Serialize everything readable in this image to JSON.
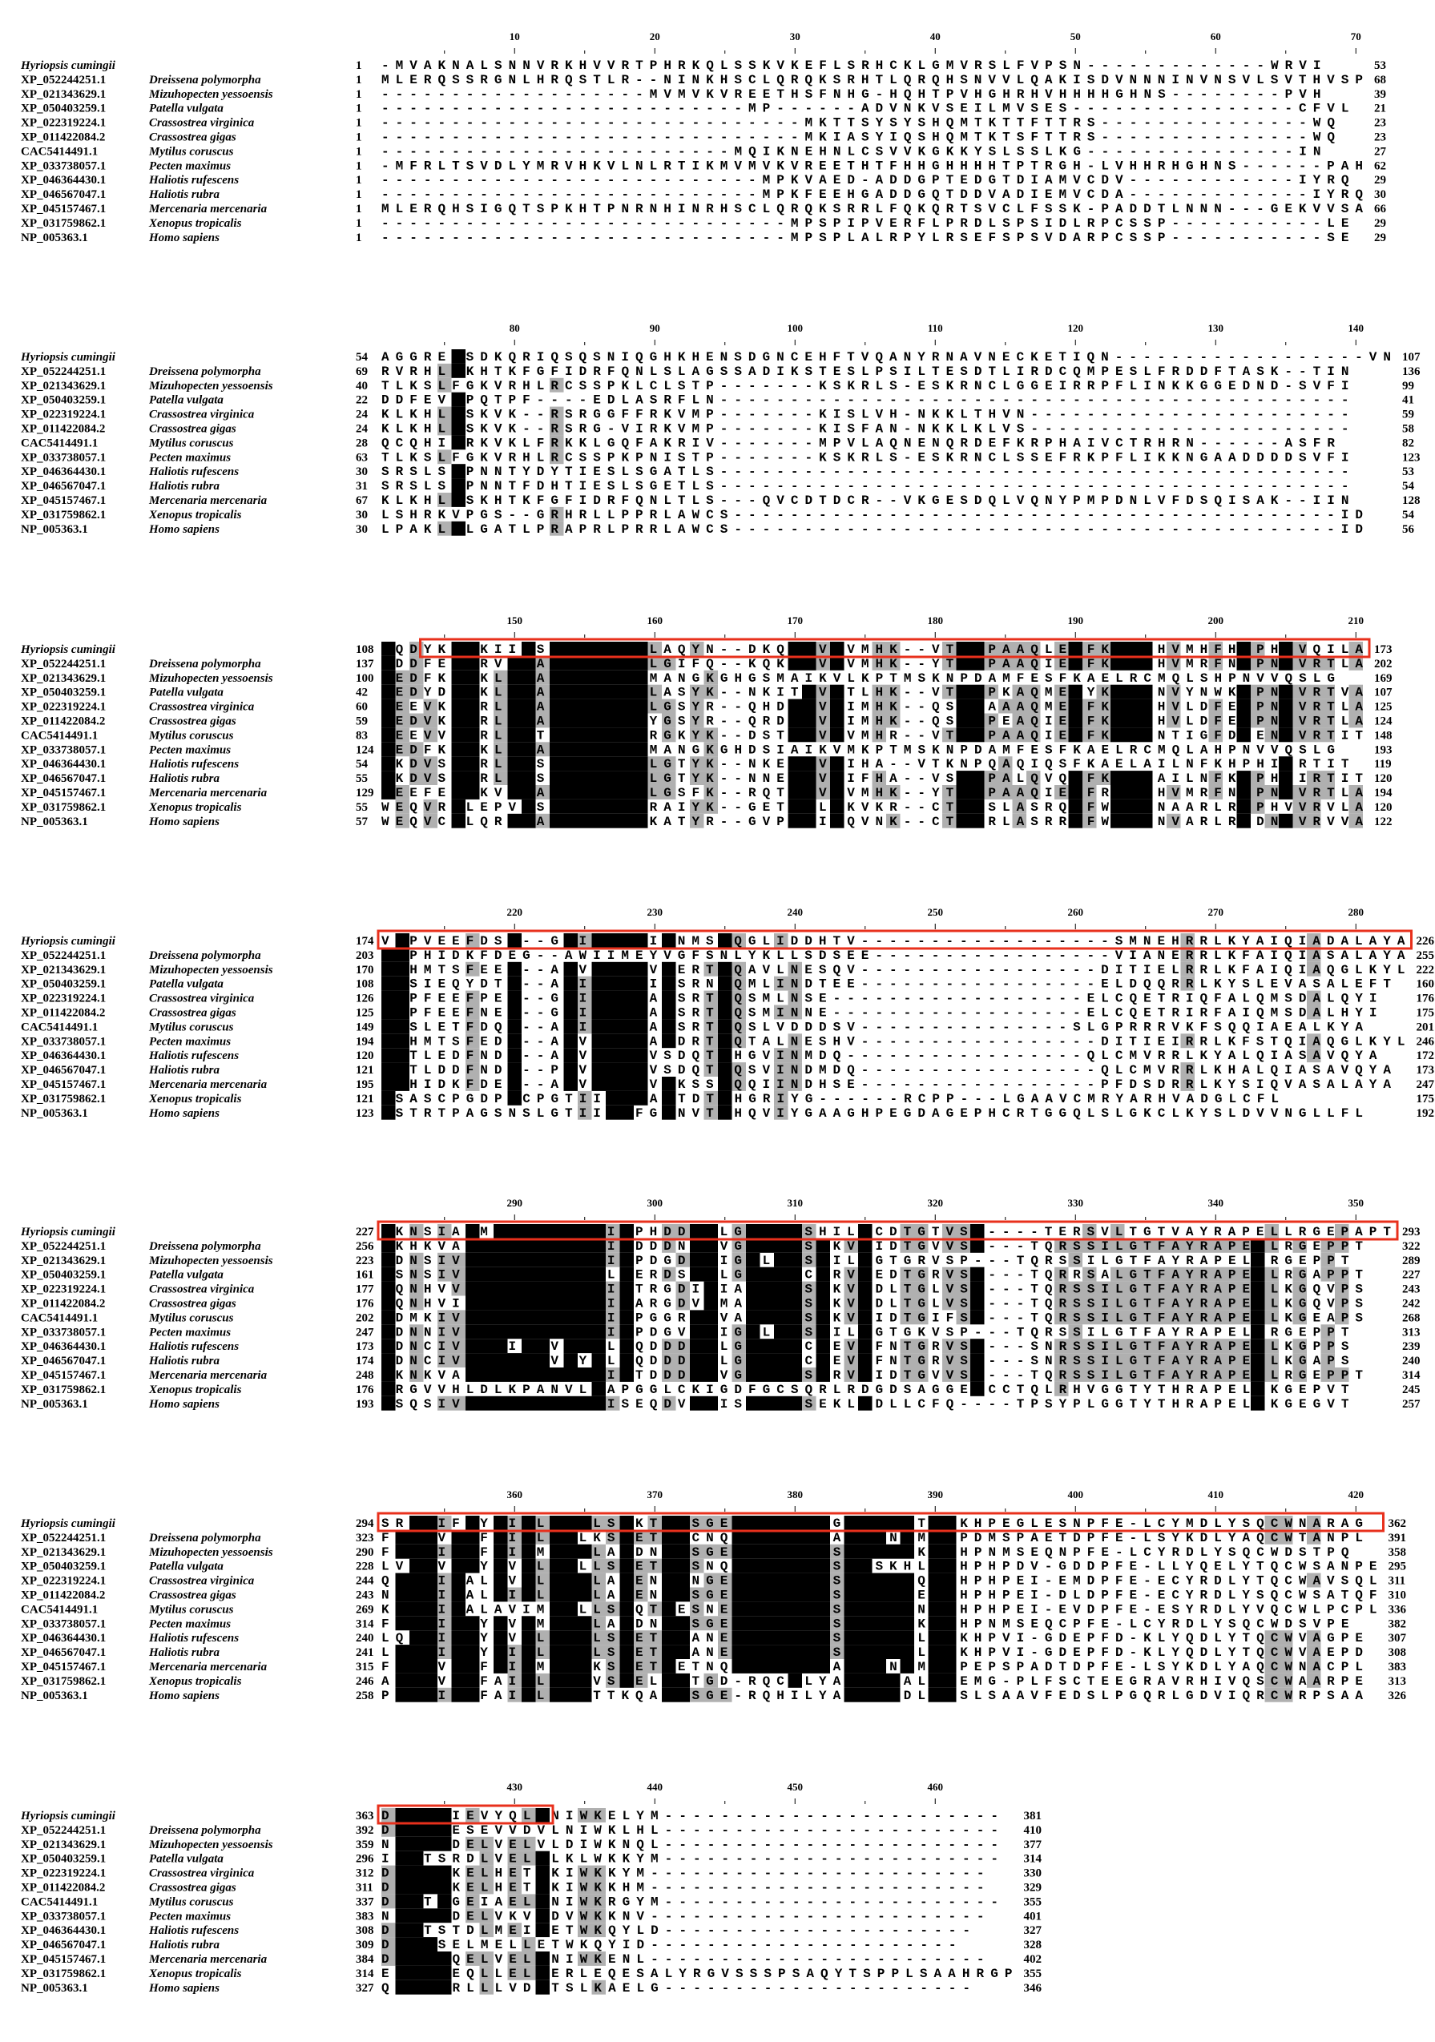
{
  "species": [
    {
      "acc": "Hyriopsis cumingii",
      "name": ""
    },
    {
      "acc": "XP_052244251.1",
      "name": "Dreissena polymorpha"
    },
    {
      "acc": "XP_021343629.1",
      "name": "Mizuhopecten yessoensis"
    },
    {
      "acc": "XP_050403259.1",
      "name": "Patella vulgata"
    },
    {
      "acc": "XP_022319224.1",
      "name": "Crassostrea virginica"
    },
    {
      "acc": "XP_011422084.2",
      "name": "Crassostrea gigas"
    },
    {
      "acc": "CAC5414491.1",
      "name": "Mytilus coruscus"
    },
    {
      "acc": "XP_033738057.1",
      "name": "Pecten maximus"
    },
    {
      "acc": "XP_046364430.1",
      "name": "Haliotis rufescens"
    },
    {
      "acc": "XP_046567047.1",
      "name": "Haliotis rubra"
    },
    {
      "acc": "XP_045157467.1",
      "name": "Mercenaria mercenaria"
    },
    {
      "acc": "XP_031759862.1",
      "name": "Xenopus tropicalis"
    },
    {
      "acc": "NP_005363.1",
      "name": "Homo sapiens"
    }
  ],
  "blocks": [
    {
      "ruler": [
        "10",
        "20",
        "30",
        "40",
        "50",
        "60",
        "70"
      ],
      "rows": [
        {
          "start": 1,
          "seq": "-MVAKNALSNNVRKHVVRTPHRKQLSSKVKEFLSRHCKLGMVRSLFVPSN-------------WRVI",
          "end": 53
        },
        {
          "start": 1,
          "seq": "MLERQSSRGNLHRQSTLR--NINKHSCLQRQKSRHTLQRQHSNVVLQAKISDVNNNINVNSVLSVTHVSP",
          "end": 68
        },
        {
          "start": 1,
          "seq": "-------------------MVMVKVREETHSFNHG-HQHTPVHGHRHVHHHHGHNS--------PVH",
          "end": 39
        },
        {
          "start": 1,
          "seq": "--------------------------MP------ADVNKVSEILMVSES----------------CFVL",
          "end": 21
        },
        {
          "start": 1,
          "seq": "------------------------------MKTTSYSYSHQMTKTTFTTRS---------------WQ",
          "end": 23
        },
        {
          "start": 1,
          "seq": "------------------------------MKIASYIQSHQMTKTSFTTRS---------------WQ",
          "end": 23
        },
        {
          "start": 1,
          "seq": "-------------------------MQIKNEHNLCSVVKGKKYSLSSLKG---------------IN",
          "end": 27
        },
        {
          "start": 1,
          "seq": "-MFRLTSVDLYMRVHKVLNLRTIKMVMVKVREETHTFHHGHHHHTPTRGH-LVHHRHGHNS------PAH",
          "end": 62
        },
        {
          "start": 1,
          "seq": "---------------------------MPKVAED-ADDGPTEDGTDIAMVCDV------------IYRQ",
          "end": 29
        },
        {
          "start": 1,
          "seq": "---------------------------MPKFEEHGADDGQTDDVADIEMVCDA-------------IYRQ",
          "end": 30
        },
        {
          "start": 1,
          "seq": "MLERQHSIGQTSPKHTPNRNHINRHSCLQRQKSRRLFQKQRTSVCLFSSK-PADDTLNNN---GEKVVSA",
          "end": 66
        },
        {
          "start": 1,
          "seq": "-----------------------------MPSPIPVERFLPRDLSPSIDLRPCSSP-----------LE",
          "end": 29
        },
        {
          "start": 1,
          "seq": "-----------------------------MPSPLALRPYLRSEFSPSVDARPCSSP-----------SE",
          "end": 29
        }
      ]
    },
    {
      "ruler": [
        "80",
        "90",
        "100",
        "110",
        "120",
        "130",
        "140"
      ],
      "rows": [
        {
          "start": 54,
          "seq": "AGGRELSDKQRIQSQSNIQGHKHENSDGNCEHFTVQANYRNAVNECKETIQN------------------VN",
          "end": 107
        },
        {
          "start": 69,
          "seq": "RVRHLLKHTKFGFIDRFQNLSLAGSSADIKSTESLPSILTESDTLIRDCQMPESLFRDDFTASK--TIN",
          "end": 136
        },
        {
          "start": 40,
          "seq": "TLKSLFGKVRHLRCSSPKLCLSTP-------KSKRLS-ESKRNCLGGEIRRPFLINKKGGEDND-SVFI",
          "end": 99
        },
        {
          "start": 22,
          "seq": "DDFEVLPQTPF----EDLASRFLN---------------------------------------------",
          "end": 41
        },
        {
          "start": 24,
          "seq": "KLKHLLSKVK--RSRGGFFRKVMP-------KISLVH-NKKLTHVN-----------------------",
          "end": 59
        },
        {
          "start": 24,
          "seq": "KLKHLLSKVK--RSRG-VIRKVMP-------KISFAN-NKKLKLVS-----------------------",
          "end": 58
        },
        {
          "start": 28,
          "seq": "QCQHILRKVKLFRKKLGQFAKRIV-------MPVLAQNENQRDEFKRPHAIVCTRHRN------ASFR",
          "end": 82
        },
        {
          "start": 63,
          "seq": "TLKSLFGKVRHLRCSSPKPNISTP-------KSKRLS-ESKRNCLSSEFRKPFLIKKNGAADDDDSVFI",
          "end": 123
        },
        {
          "start": 30,
          "seq": "SRSLSLPNNTYDYTIESLSGATLS---------------------------------------------",
          "end": 53
        },
        {
          "start": 31,
          "seq": "SRSLSLPNNTFDHTIESLSGETLS---------------------------------------------",
          "end": 54
        },
        {
          "start": 67,
          "seq": "KLKHLLSKHTKFGFIDRFQNLTLS---QVCDTDCR--VKGESDQLVQNYPMPDNLVFDSQISAK--IIN",
          "end": 128
        },
        {
          "start": 30,
          "seq": "LSHRKVPGS--GRHRLLPPRLAWCS-------------------------------------------ID",
          "end": 54
        },
        {
          "start": 30,
          "seq": "LPAKLLLGATLPRAPRLPRRLAWCS-------------------------------------------ID",
          "end": 56
        }
      ]
    },
    {
      "ruler": [
        "150",
        "160",
        "170",
        "180",
        "190",
        "200",
        "210"
      ],
      "rows": [
        {
          "start": 108,
          "seq": "KQDYKLGKIIGSGGFGSVYLAQYN--DKQVAVKVMHK--VTKNPAAQLESFKAELHVMHFHHPHIVQILA",
          "end": 173
        },
        {
          "start": 137,
          "seq": "KDDFELGRVLGAGGFGSVYLGIFQ--KQKVAVKVMHK--YTKNPAAQIESFKAELHVMRFNHPNIVRTLA",
          "end": 202
        },
        {
          "start": 100,
          "seq": "KEDFKLGKLLGAGGFGSVYMANGKGHGSMAIKVLKPTMSKNPDAMFESFKAELRCMQLSHPNVVQSLG",
          "end": 169
        },
        {
          "start": 42,
          "seq": "KEDYDLGKLLGAGGFGSVYLASYK--NKITAVKTLHK--VTKNPKAQMESYKAELNVYNWKHPNIVRTVA",
          "end": 107
        },
        {
          "start": 60,
          "seq": "KEEVKLGRLLGAGGFGSVYLGSYR--QHDVAVKIMHK--QSKNAAAQMESFKAELHVLDFEHPNIVRTLA",
          "end": 125
        },
        {
          "start": 59,
          "seq": "KEDVKLGRLLGAGGFGSVYYGSYR--QRDVAVKIMHK--QSKNPEAQIESFKAELHVLDFEHPNIVRTLA",
          "end": 124
        },
        {
          "start": 83,
          "seq": "KEEVVLGRLLGTGGFGSVYRGKYK--DSTVAVKVMHR--VTKNPAAQIESFKAELNTIGFDHENIVRTIT",
          "end": 148
        },
        {
          "start": 124,
          "seq": "KEDFKLGKLLGAGGFGSVYMANGKGHDSIAIKVMKPTMSKNPDAMFESFKAELRCMQLAHPNVVQSLG",
          "end": 193
        },
        {
          "start": 54,
          "seq": "KKDVSLGRLLGSGGFGSVYLGTYK--NKEVAVKIHA--VTKNPQAQIQSFKAELAILNFKHPHIIRTIT",
          "end": 119
        },
        {
          "start": 55,
          "seq": "KKDVSLGRLLGSGGFGSVYLGTYK--NNEVAVKIFHA--VSKNPALQVQSFKAELAILNFKHPHIIRTIT",
          "end": 120
        },
        {
          "start": 129,
          "seq": "KEEFELGKVLGAGGFGSVYLGSFK--RQTVAVKVMHK--YTKNPAAQIESFRAELHVMRFNHPNIVRTLA",
          "end": 194
        },
        {
          "start": 55,
          "seq": "WEQVRLLEPVGSGGFGSVYRAIYK--GETVALKKVKR--CTKNSLASRQSFWAELNAARLRHPHVVRVLA",
          "end": 120
        },
        {
          "start": 57,
          "seq": "WEQVCLLQRLGAGGFGSVYKATYR--GVPVAIKQVNK--CTKNRLASRRSFWAELNVARLRHDNIVRVVA",
          "end": 122
        }
      ]
    },
    {
      "ruler": [
        "220",
        "230",
        "240",
        "250",
        "260",
        "270",
        "280"
      ],
      "rows": [
        {
          "start": 174,
          "seq": "VTPVEEFDSG--GWIVMEYIGNMSLQGLIDDHTV------------------SMNEHRRLKYAIQIADALAYA",
          "end": 226
        },
        {
          "start": 203,
          "seq": "ATPHIDKFDEG--AWIIMEYVGFSNLYKLLSDSEE-----------------VIANERRLKFAIQIASALAYA",
          "end": 255
        },
        {
          "start": 170,
          "seq": "ATHMTSFEEG--AWVVMEYVGERTLQAVLNESQV-----------------DITIELRRLKFAIQIAQGLKYL",
          "end": 222
        },
        {
          "start": 108,
          "seq": "ATSIEQYDTG--AWIVMEYIGSRNLQMLINDTEE-----------------ELDQQRRLKYSLEVASALEFT",
          "end": 160
        },
        {
          "start": 126,
          "seq": "ATPFEEFPEG--GWIVMEYAGSRTLQSMLNSE------------------ELCQETRIQFALQMSDALQYI",
          "end": 176
        },
        {
          "start": 125,
          "seq": "ATPFEEFNEG--GWIVMEYAGSRTLQSMINNE------------------ELCQETRIRFAIQMSDALHYI",
          "end": 175
        },
        {
          "start": 149,
          "seq": "ATSLETFDQG--AWIVMEYAGSRTLQSLVDDDSV---------------SLGPRRRVKFSQQIAEALKYA",
          "end": 201
        },
        {
          "start": 194,
          "seq": "ATHMTSFEDG--AWVVMEYAGDRTLQTALNESHV-----------------DITIEIRRLKFSTQIAQGLKYL",
          "end": 246
        },
        {
          "start": 120,
          "seq": "ATTLEDFNDG--AWVVMEYVSDQTLHGVINMDQ-----------------QLCMVRRLKYALQIASAVQYA",
          "end": 172
        },
        {
          "start": 121,
          "seq": "ATTLDDFNDG--PWVVMEYVSDQTLQSVINDMDQ-----------------QLCMVRRLKHALQIASAVQYA",
          "end": 173
        },
        {
          "start": 195,
          "seq": "ATHIDKFDEG--AWVVMEYVGKSSLQQIINDHSE-----------------PFDSDRRLKYSIQVASALAYA",
          "end": 247
        },
        {
          "start": 121,
          "seq": "ASASCPGDPGCPGTIIMEYAGTDTLHGRIYG------RCPP---LGAAVCMRYARHVADGLCFL",
          "end": 175
        },
        {
          "start": 123,
          "seq": "ASTRTPAGSNSLGTIIMEFGGNVTLHQVIYGAAGHPEGDAGEPHCRTGGQLSLGKCLKYSLDVVNGLLFL",
          "end": 192
        }
      ]
    },
    {
      "ruler": [
        "290",
        "300",
        "310",
        "320",
        "330",
        "340",
        "350"
      ],
      "rows": [
        {
          "start": 227,
          "seq": "HKNSIAHMDLKPANILITPHDDCKLGDFGCSHILECDTGTVSP----TERSVLTGTVAYRAPELLRGEPAPT",
          "end": 293
        },
        {
          "start": 256,
          "seq": "HKHKVAHLDLKPANILITDDDNCKVGDFGCSQKVEIDTGVVSP---TQRSSILGTFAYRAPELLRGEPPT",
          "end": 322
        },
        {
          "start": 223,
          "seq": "HDNSIVHLDLKPANILITPDGDCKIGDLGCSQILEGTGRVSP---TQRSSILGTFAYRAPELLRGEPPT",
          "end": 289
        },
        {
          "start": 161,
          "seq": "HSNSIVHLDLKPANILLTERDSCKLGDFGCCQRVEEDTGRVSP---TQRRSALGTFAYRAPELLRGAPPT",
          "end": 227
        },
        {
          "start": 177,
          "seq": "HQNHVVHLDLKPANILITTRGDIKIADFGCSQKVEDLTGLVSP---TQRSSILGTFAYRAPELLKGQVPS",
          "end": 243
        },
        {
          "start": 176,
          "seq": "HQNHVIHLDLKPANILITARGDVKMADFGCSQKVEDLTGLVSP---TQRSSILGTFAYRAPELLKGQVPS",
          "end": 242
        },
        {
          "start": 202,
          "seq": "HDMKIVHLDLKPANILITPGGRCKVADFGCSQKVEIDTGIFSP---TQRSSILGTFAYRAPELLKGEAPS",
          "end": 268
        },
        {
          "start": 247,
          "seq": "HDNNIVHLDLKPANILITPDGVCKIGDLGCSQILEGTGKVSP---TQRSSILGTFAYRAPELLRGEPPT",
          "end": 313
        },
        {
          "start": 173,
          "seq": "HDNCIVHLDIKPVNILLTQDDDCKLGDFGCCQEVEFNTGRVSP---SNRSSILGTFAYRAPELLKGPPS",
          "end": 239
        },
        {
          "start": 174,
          "seq": "HDNCIVHLDLKPVNYLLTQDDDCKLGDFGCCQEVEFNTGRVSP---SNRSSILGTFAYRAPELLKGAPS",
          "end": 240
        },
        {
          "start": 248,
          "seq": "HKNKVAHLDLKPANILITTDDDCKVGDFGCSQRVEIDTGVVSP---TQRSSILGTFAYRAPELLRGEPPT",
          "end": 314
        },
        {
          "start": 176,
          "seq": "HRGVVHLDLKPANVLLAPGGLCKIGDFGCSQRLRDGDSAGGEPCCTQLRHVGGTYTHRAPELLKGEPVT",
          "end": 245
        },
        {
          "start": 193,
          "seq": "HSQSIVHLDLKPANILISEQDVCKISDFGCSEKLEDLLCFQ----TPSYPLGGTYTHRAPELLKGEGVT",
          "end": 257
        }
      ]
    },
    {
      "ruler": [
        "360",
        "370",
        "380",
        "390",
        "400",
        "410",
        "420"
      ],
      "rows": [
        {
          "start": 294,
          "seq": "SRADIFSYGITLWQMLSRKTPYSGENQHVVIFGVVAYGTRPKHPEGLESNPFE-LCYMDLYSQCWNARAG",
          "end": 362
        },
        {
          "start": 323,
          "seq": "FKADVYSFGITLWQLKSRETPYCNQNQHVVIFAVVANGMRPPDMSPAETDPFE-LSYKDLYAQCWTANPL",
          "end": 391
        },
        {
          "start": 290,
          "seq": "FKADIYSFGITMWQMLARDNPYSGENQHVVIFSVVAYGKRPHPNMSEQNPFE-LCYRDLYSQCWDSTPQ",
          "end": 358
        },
        {
          "start": 228,
          "seq": "LVADVYSYGVTLWQLLSRETPYSNQNQHVVIFSVVSKHLRPHPHPDV-GDDPFE-LLYQELYTQCWSANPE",
          "end": 295
        },
        {
          "start": 244,
          "seq": "QKADIYALGVTLWQMLARENPYNGENQHVVIFSVVAYGQRPHPHPEI-EMDPFE-ECYRDLYTQCWAVSQL",
          "end": 311
        },
        {
          "start": 243,
          "seq": "NKADIYALGITLWQMLARENPYSGENQHVVIFSVVAYGERPHPHPEI-DLDPFE-ECYRDLYSQCWSATQF",
          "end": 310
        },
        {
          "start": 269,
          "seq": "KKADIYALAVIMWQLLSRQTPESNENQHVVIFSVVAYGNRPHPHPEI-EVDPFE-ESYRDLYVQCWLPCPL",
          "end": 336
        },
        {
          "start": 314,
          "seq": "FKADIYSYGVTMWQMLARDNPYSGENQHVVIFSVVAYGKRPHPNMSEQCPFE-LCYRDLYSQCWDSVPE",
          "end": 382
        },
        {
          "start": 240,
          "seq": "LQADIYSYGVTLWQMLSRETPYANENQHVVIFSVVAYGLRPKHPVI-GDEPFD-KLYQDLYTQCWVAGPE",
          "end": 307
        },
        {
          "start": 241,
          "seq": "LKADIYSYGITLWQMLSRETPYANENQHVVIFSVVAYGLRPKHPVI-GDEPFD-KLYQDLYTQCWVAEPD",
          "end": 308
        },
        {
          "start": 315,
          "seq": "FKADVYSFGITMWQMKSRETPETNQNQHVVIFAVVANGMRPPEPSPADTDPFE-LSYKDLYAQCWNACPL",
          "end": 383
        },
        {
          "start": 246,
          "seq": "AKADVYSFAITLWQMVSRELPYTGD-RQCVLYAVVAYALRPEMG-PLFSCTEEGRAVRHIVQSCWAARPE",
          "end": 313
        },
        {
          "start": 258,
          "seq": "PKADIYSFAITLWQMTTKQAPYSGE-RQHILYAVVAYDLRPSLSAAVFEDSLPGQRLGDVIQRCWRPSAA",
          "end": 326
        }
      ]
    },
    {
      "ruler": [
        "430",
        "440",
        "450",
        "460"
      ],
      "rows": [
        {
          "start": 363,
          "seq": "DRPSAIEVYQLLNIWKELYM------------------------",
          "end": 381
        },
        {
          "start": 392,
          "seq": "DRPSAESEVVDVLNIWKLHL------------------------",
          "end": 410
        },
        {
          "start": 359,
          "seq": "NRPSADELVELVLDIWKNQL------------------------",
          "end": 377
        },
        {
          "start": 296,
          "seq": "IRPTSRDLVELLLKLWKKYM------------------------",
          "end": 314
        },
        {
          "start": 312,
          "seq": "DRPSAKELHETLKIWKKYM------------------------",
          "end": 330
        },
        {
          "start": 311,
          "seq": "DRPSAKELHETLKIWKKHM------------------------",
          "end": 329
        },
        {
          "start": 337,
          "seq": "DRPTAGEIAELLNIWKRGYM------------------------",
          "end": 355
        },
        {
          "start": 383,
          "seq": "NRPSADELVKVLDVWKKNV------------------------",
          "end": 401
        },
        {
          "start": 308,
          "seq": "DRPTSTDLMEILETWKQYLD----------------------",
          "end": 327
        },
        {
          "start": 309,
          "seq": "DRPSSELMELLETWKQYID----------------------",
          "end": 328
        },
        {
          "start": 384,
          "seq": "DRPSAQELVELLNIWKENL------------------------",
          "end": 402
        },
        {
          "start": 314,
          "seq": "ERPSAEQLLELLERLEQESALYRGVSSSPSAQYTSPPLSAAHRGP",
          "end": 355
        },
        {
          "start": 327,
          "seq": "QRPSARLLLVDLTSLKAELG----------------------",
          "end": 346
        }
      ]
    }
  ]
}
